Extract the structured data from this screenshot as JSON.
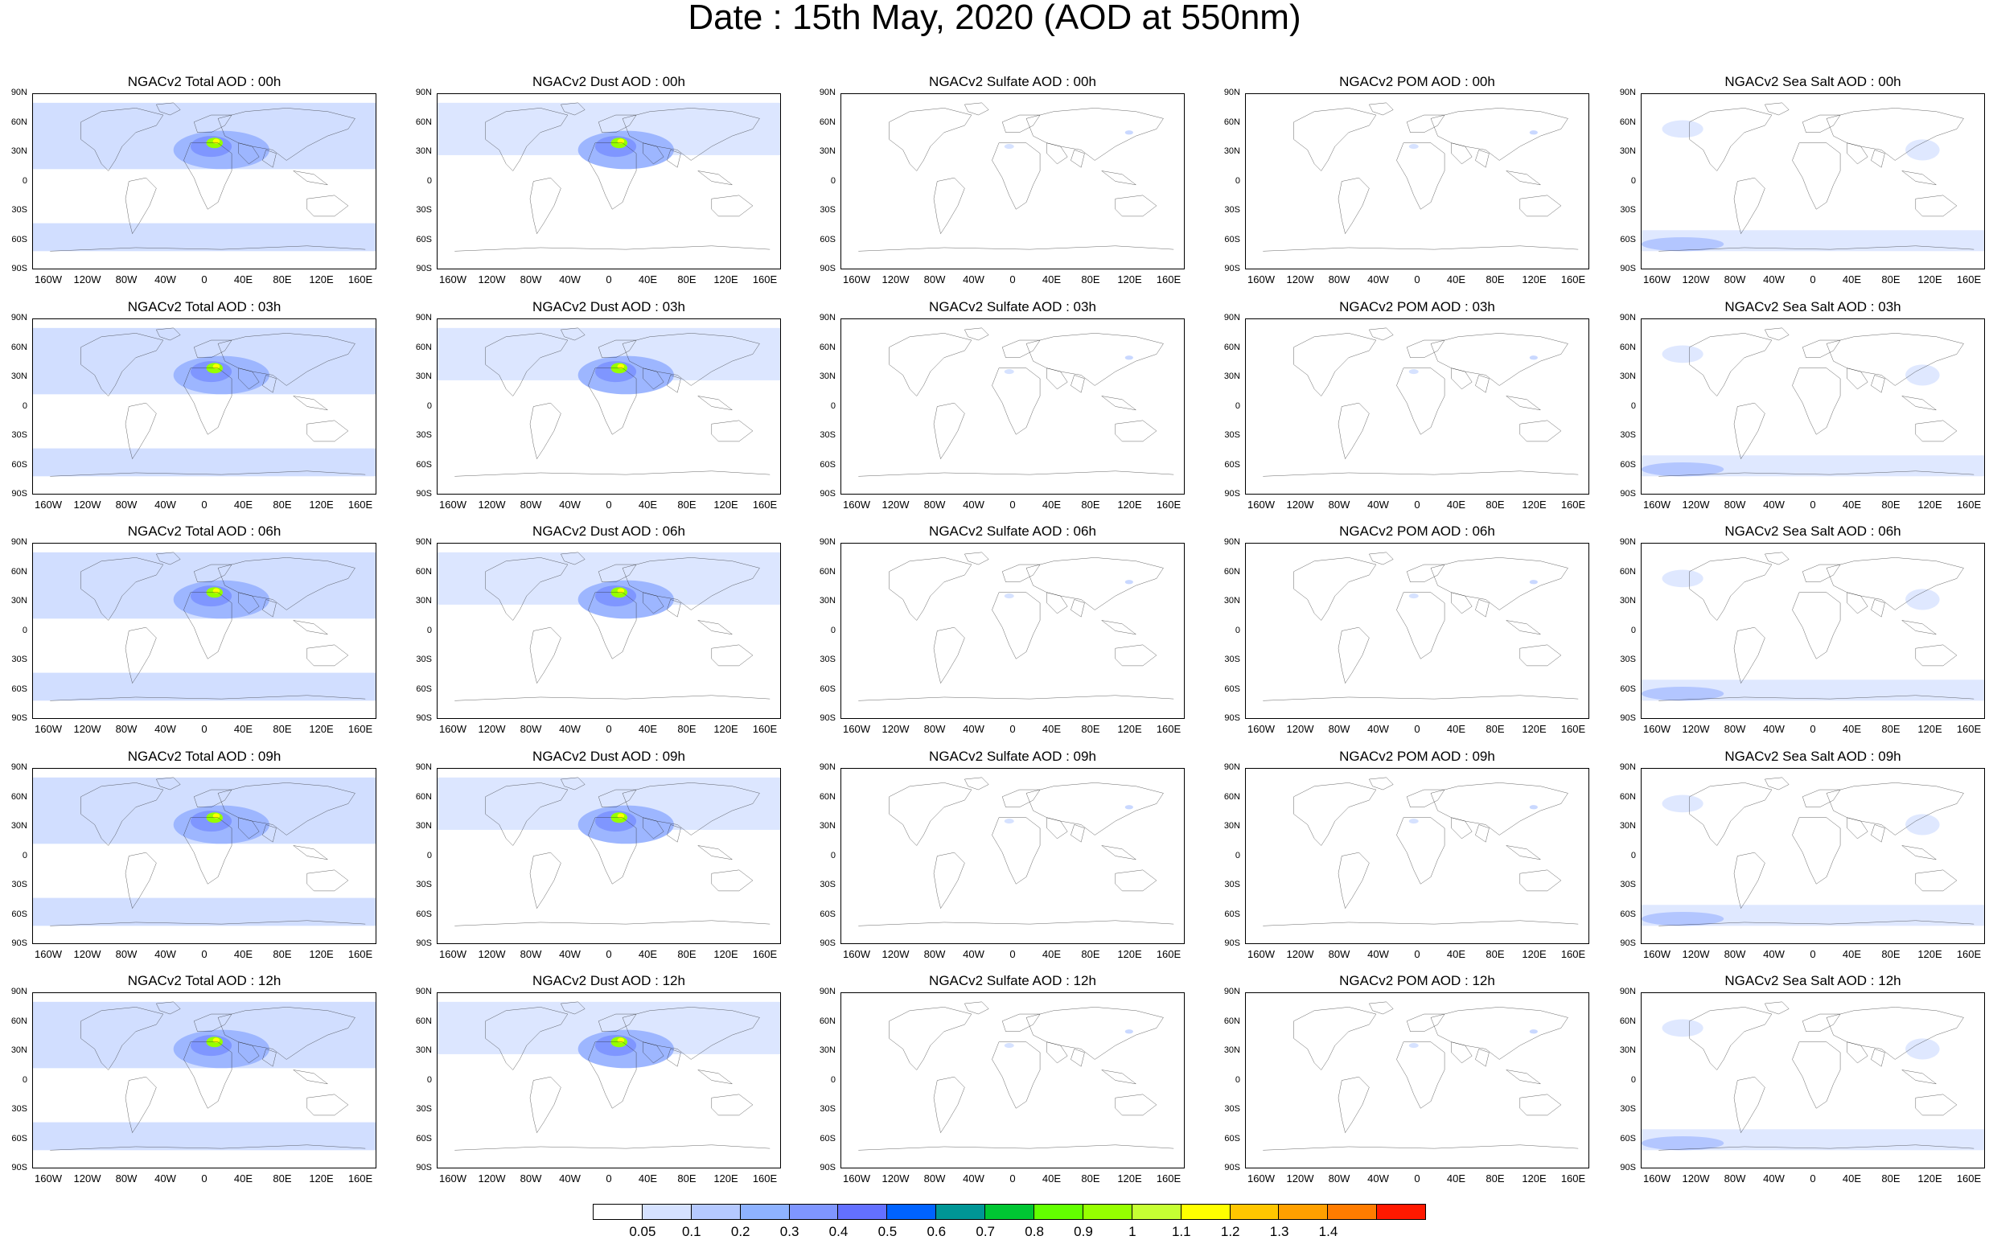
{
  "title": "Date : 15th May, 2020 (AOD at 550nm)",
  "rows": [
    [
      "NGACv2 Total AOD : 00h",
      "NGACv2 Dust AOD : 00h",
      "NGACv2 Sulfate AOD : 00h",
      "NGACv2 POM AOD : 00h",
      "NGACv2 Sea Salt AOD : 00h"
    ],
    [
      "NGACv2 Total AOD : 03h",
      "NGACv2 Dust AOD : 03h",
      "NGACv2 Sulfate AOD : 03h",
      "NGACv2 POM AOD : 03h",
      "NGACv2 Sea Salt AOD : 03h"
    ],
    [
      "NGACv2 Total AOD : 06h",
      "NGACv2 Dust AOD : 06h",
      "NGACv2 Sulfate AOD : 06h",
      "NGACv2 POM AOD : 06h",
      "NGACv2 Sea Salt AOD : 06h"
    ],
    [
      "NGACv2 Total AOD : 09h",
      "NGACv2 Dust AOD : 09h",
      "NGACv2 Sulfate AOD : 09h",
      "NGACv2 POM AOD : 09h",
      "NGACv2 Sea Salt  AOD : 09h"
    ],
    [
      "NGACv2 Total AOD  : 12h",
      "NGACv2 Dust AOD : 12h",
      "NGACv2 Sulfate AOD : 12h",
      "NGACv2 POM  AOD : 12h",
      "NGACv2 Sea Salt  AOD : 12h"
    ]
  ],
  "lat_labels": [
    "90N",
    "60N",
    "30N",
    "0",
    "30S",
    "60S",
    "90S"
  ],
  "lon_labels": [
    "160W",
    "120W",
    "80W",
    "40W",
    "0",
    "40E",
    "80E",
    "120E",
    "160E"
  ],
  "colorbar": {
    "colors": [
      "#ffffff",
      "#d6e2ff",
      "#b5c9ff",
      "#8eb2ff",
      "#7f96ff",
      "#6370ff",
      "#0063ff",
      "#009696",
      "#00c633",
      "#63ff00",
      "#96ff00",
      "#c6ff33",
      "#ffff00",
      "#ffc600",
      "#ffa000",
      "#ff7c00",
      "#ff1900"
    ],
    "labels": [
      "0.05",
      "0.1",
      "0.2",
      "0.3",
      "0.4",
      "0.5",
      "0.6",
      "0.7",
      "0.8",
      "0.9",
      "1",
      "1.1",
      "1.2",
      "1.3",
      "1.4"
    ]
  }
}
